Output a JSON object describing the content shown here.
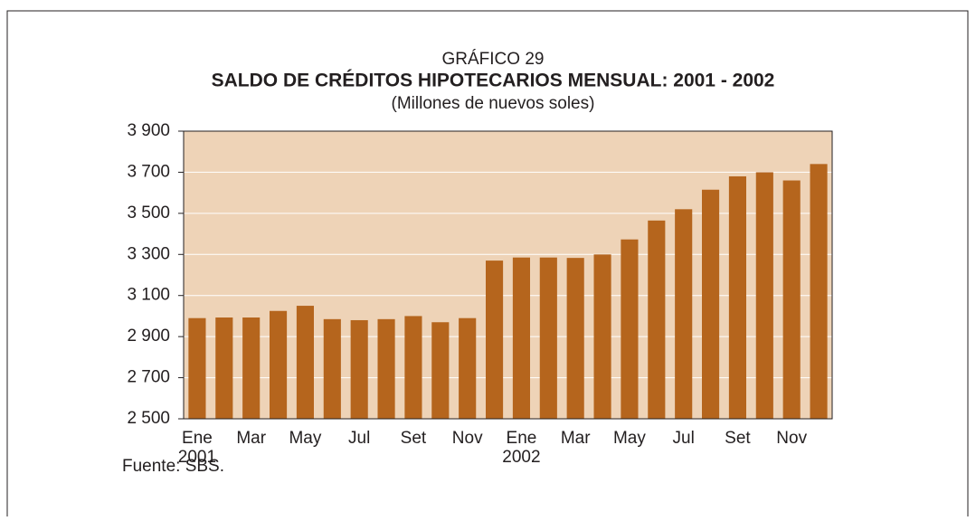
{
  "chart_data": {
    "type": "bar",
    "label": "GRÁFICO 29",
    "title": "SALDO DE CRÉDITOS HIPOTECARIOS MENSUAL: 2001 - 2002",
    "subtitle": "(Millones de nuevos soles)",
    "source": "Fuente: SBS.",
    "categories": [
      "Ene",
      null,
      "Mar",
      null,
      "May",
      null,
      "Jul",
      null,
      "Set",
      null,
      "Nov",
      null,
      "Ene",
      null,
      "Mar",
      null,
      "May",
      null,
      "Jul",
      null,
      "Set",
      null,
      "Nov",
      null
    ],
    "year_labels": [
      "2001",
      null,
      null,
      null,
      null,
      null,
      null,
      null,
      null,
      null,
      null,
      null,
      "2002",
      null,
      null,
      null,
      null,
      null,
      null,
      null,
      null,
      null,
      null,
      null
    ],
    "values": [
      2990,
      2993,
      2993,
      3025,
      3050,
      2985,
      2980,
      2985,
      3000,
      2970,
      2990,
      3270,
      3285,
      3285,
      3283,
      3300,
      3373,
      3465,
      3520,
      3615,
      3680,
      3700,
      3660,
      3740
    ],
    "color": "#b5651d",
    "background": "#eed3b7",
    "ylim": [
      2500,
      3900
    ],
    "yticks": [
      {
        "value": 2500,
        "label": "2 500"
      },
      {
        "value": 2700,
        "label": "2 700"
      },
      {
        "value": 2900,
        "label": "2 900"
      },
      {
        "value": 3100,
        "label": "3 100"
      },
      {
        "value": 3300,
        "label": "3 300"
      },
      {
        "value": 3500,
        "label": "3 500"
      },
      {
        "value": 3700,
        "label": "3 700"
      },
      {
        "value": 3900,
        "label": "3 900"
      }
    ],
    "grid": true
  }
}
